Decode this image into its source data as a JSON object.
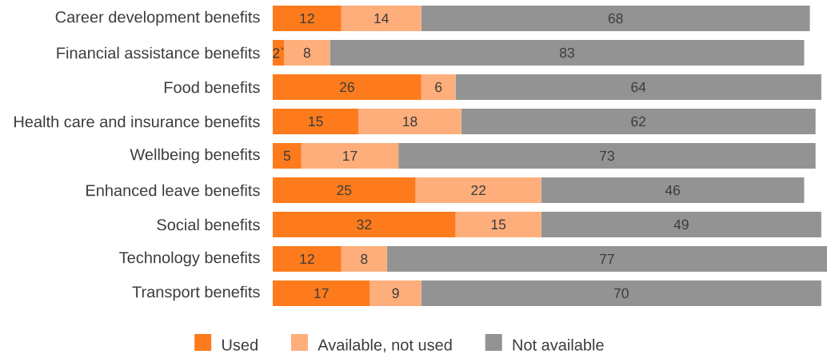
{
  "chart_data": {
    "type": "bar",
    "orientation": "horizontal",
    "stacked": true,
    "categories": [
      "Career development benefits",
      "Financial assistance benefits",
      "Food benefits",
      "Health care and insurance benefits",
      "Wellbeing benefits",
      "Enhanced leave benefits",
      "Social benefits",
      "Technology benefits",
      "Transport benefits"
    ],
    "series": [
      {
        "name": "Used",
        "color": "#fd7b1c",
        "values": [
          12,
          2,
          26,
          15,
          5,
          25,
          32,
          12,
          17
        ],
        "value_labels": [
          "12",
          "2`",
          "26",
          "15",
          "5",
          "25",
          "32",
          "12",
          "17"
        ]
      },
      {
        "name": "Available, not used",
        "color": "#feae7b",
        "values": [
          14,
          8,
          6,
          18,
          17,
          22,
          15,
          8,
          9
        ],
        "value_labels": [
          "14",
          "8",
          "6",
          "18",
          "17",
          "22",
          "15",
          "8",
          "9"
        ]
      },
      {
        "name": "Not available",
        "color": "#939393",
        "values": [
          68,
          83,
          64,
          62,
          73,
          46,
          49,
          77,
          70
        ],
        "value_labels": [
          "68",
          "83",
          "64",
          "62",
          "73",
          "46",
          "49",
          "77",
          "70"
        ]
      }
    ],
    "legend": "bottom",
    "tick_labels": "y"
  }
}
